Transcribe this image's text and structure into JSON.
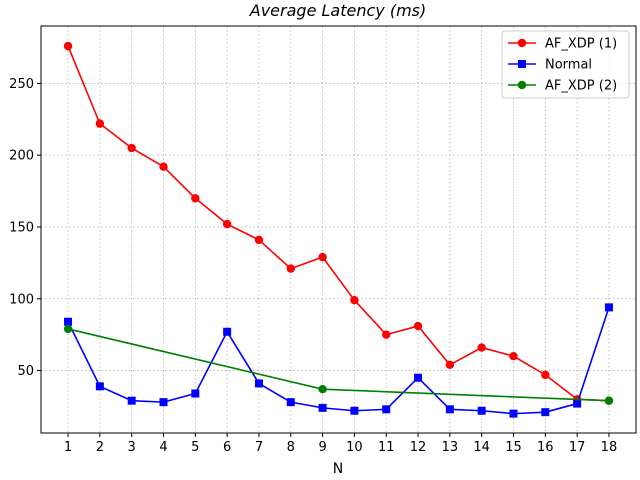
{
  "chart_data": {
    "type": "line",
    "title": "Average Latency (ms)",
    "xlabel": "N",
    "ylabel": "",
    "x": [
      1,
      2,
      3,
      4,
      5,
      6,
      7,
      8,
      9,
      10,
      11,
      12,
      13,
      14,
      15,
      16,
      17,
      18
    ],
    "xlim": [
      0.15,
      18.85
    ],
    "ylim": [
      6.5,
      290
    ],
    "yticks": [
      50,
      100,
      150,
      200,
      250
    ],
    "grid": true,
    "legend_position": "top-right",
    "series": [
      {
        "name": "AF_XDP (1)",
        "color": "#ff0000",
        "marker": "circle",
        "x": [
          1,
          2,
          3,
          4,
          5,
          6,
          7,
          8,
          9,
          10,
          11,
          12,
          13,
          14,
          15,
          16,
          17,
          18
        ],
        "values": [
          276,
          222,
          205,
          192,
          170,
          152,
          141,
          121,
          129,
          99,
          75,
          81,
          54,
          66,
          60,
          47,
          30,
          29
        ]
      },
      {
        "name": "Normal",
        "color": "#0000ff",
        "marker": "square",
        "x": [
          1,
          2,
          3,
          4,
          5,
          6,
          7,
          8,
          9,
          10,
          11,
          12,
          13,
          14,
          15,
          16,
          17,
          18
        ],
        "values": [
          84,
          39,
          29,
          28,
          34,
          77,
          41,
          28,
          24,
          22,
          23,
          45,
          23,
          22,
          20,
          21,
          27,
          94
        ]
      },
      {
        "name": "AF_XDP (2)",
        "color": "#008000",
        "marker": "circle",
        "x": [
          1,
          9,
          18
        ],
        "values": [
          79,
          37,
          29
        ]
      }
    ]
  }
}
